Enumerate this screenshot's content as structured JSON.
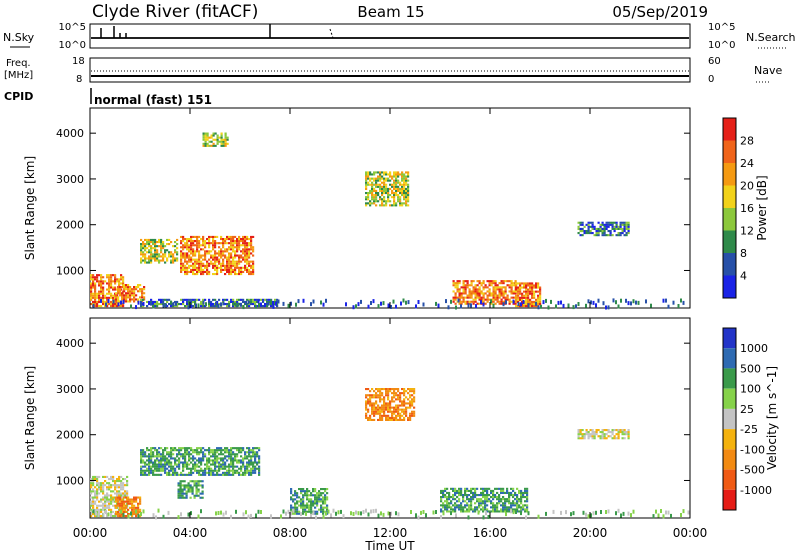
{
  "header": {
    "title": "Clyde River (fitACF)",
    "beam": "Beam 15",
    "date": "05/Sep/2019"
  },
  "noise_panel": {
    "left_label": "N.Sky",
    "left_ticks": [
      "10^5",
      "10^0"
    ],
    "right_ticks": [
      "10^5",
      "10^0"
    ],
    "right_label": "N.Search"
  },
  "freq_panel": {
    "left_label_1": "Freq.",
    "left_label_2": "[MHz]",
    "left_ticks": [
      "18",
      "8"
    ],
    "right_ticks": [
      "60",
      "0"
    ],
    "right_label": "Nave"
  },
  "cpid_panel": {
    "label": "CPID",
    "mode_text": "normal (fast) 151"
  },
  "time_axis": {
    "ticks": [
      "00:00",
      "04:00",
      "08:00",
      "12:00",
      "16:00",
      "20:00",
      "00:00"
    ],
    "label": "Time UT"
  },
  "colors": {
    "power_scale": [
      "#1a23e6",
      "#2750a8",
      "#2f8a4a",
      "#8cc83c",
      "#f2d21a",
      "#f59a12",
      "#f0641a",
      "#e52018"
    ],
    "velocity_scale": [
      "#e51c16",
      "#f05a14",
      "#f28a12",
      "#f4b20e",
      "#c4c4c4",
      "#86d24a",
      "#3a9a4a",
      "#2e6ab2",
      "#2234c8"
    ]
  },
  "chart_data": [
    {
      "type": "heatmap",
      "panel": "power",
      "ylabel": "Slant Range [km]",
      "yticks": [
        "1000",
        "2000",
        "3000",
        "4000"
      ],
      "ylim": [
        180,
        4550
      ],
      "xlim_hours": [
        0,
        24
      ],
      "colorbar_label": "Power [dB]",
      "colorbar_ticks": [
        "4",
        "8",
        "12",
        "16",
        "20",
        "24",
        "28"
      ],
      "regions": [
        {
          "t0": 0.0,
          "t1": 1.3,
          "r0": 200,
          "r1": 900,
          "level": "high"
        },
        {
          "t0": 1.0,
          "t1": 2.2,
          "r0": 300,
          "r1": 700,
          "level": "high"
        },
        {
          "t0": 2.0,
          "t1": 7.5,
          "r0": 200,
          "r1": 350,
          "level": "low"
        },
        {
          "t0": 2.0,
          "t1": 3.5,
          "r0": 1150,
          "r1": 1650,
          "level": "mid"
        },
        {
          "t0": 3.6,
          "t1": 6.5,
          "r0": 900,
          "r1": 1750,
          "level": "high"
        },
        {
          "t0": 4.5,
          "t1": 5.5,
          "r0": 3700,
          "r1": 4000,
          "level": "mid"
        },
        {
          "t0": 11.0,
          "t1": 12.7,
          "r0": 2400,
          "r1": 3150,
          "level": "mid"
        },
        {
          "t0": 14.5,
          "t1": 17.0,
          "r0": 250,
          "r1": 750,
          "level": "high"
        },
        {
          "t0": 17.0,
          "t1": 18.0,
          "r0": 200,
          "r1": 700,
          "level": "high"
        },
        {
          "t0": 19.5,
          "t1": 21.5,
          "r0": 1750,
          "r1": 2050,
          "level": "low"
        }
      ]
    },
    {
      "type": "heatmap",
      "panel": "velocity",
      "ylabel": "Slant Range [km]",
      "yticks": [
        "1000",
        "2000",
        "3000",
        "4000"
      ],
      "ylim": [
        180,
        4550
      ],
      "xlim_hours": [
        0,
        24
      ],
      "colorbar_label": "Velocity [m s^-1]",
      "colorbar_ticks": [
        "1000",
        "500",
        "100",
        "25",
        "-25",
        "-100",
        "-500",
        "-1000"
      ],
      "regions": [
        {
          "t0": 0.0,
          "t1": 1.5,
          "r0": 200,
          "r1": 1100,
          "level": "zero"
        },
        {
          "t0": 1.0,
          "t1": 2.0,
          "r0": 200,
          "r1": 650,
          "level": "neg"
        },
        {
          "t0": 2.0,
          "t1": 6.8,
          "r0": 1100,
          "r1": 1700,
          "level": "pos"
        },
        {
          "t0": 3.5,
          "t1": 4.5,
          "r0": 600,
          "r1": 1000,
          "level": "pos"
        },
        {
          "t0": 8.0,
          "t1": 9.5,
          "r0": 250,
          "r1": 800,
          "level": "pos"
        },
        {
          "t0": 11.0,
          "t1": 13.0,
          "r0": 2300,
          "r1": 3000,
          "level": "neg"
        },
        {
          "t0": 14.0,
          "t1": 17.5,
          "r0": 300,
          "r1": 800,
          "level": "pos"
        },
        {
          "t0": 19.5,
          "t1": 21.5,
          "r0": 1900,
          "r1": 2100,
          "level": "zero"
        }
      ]
    }
  ]
}
